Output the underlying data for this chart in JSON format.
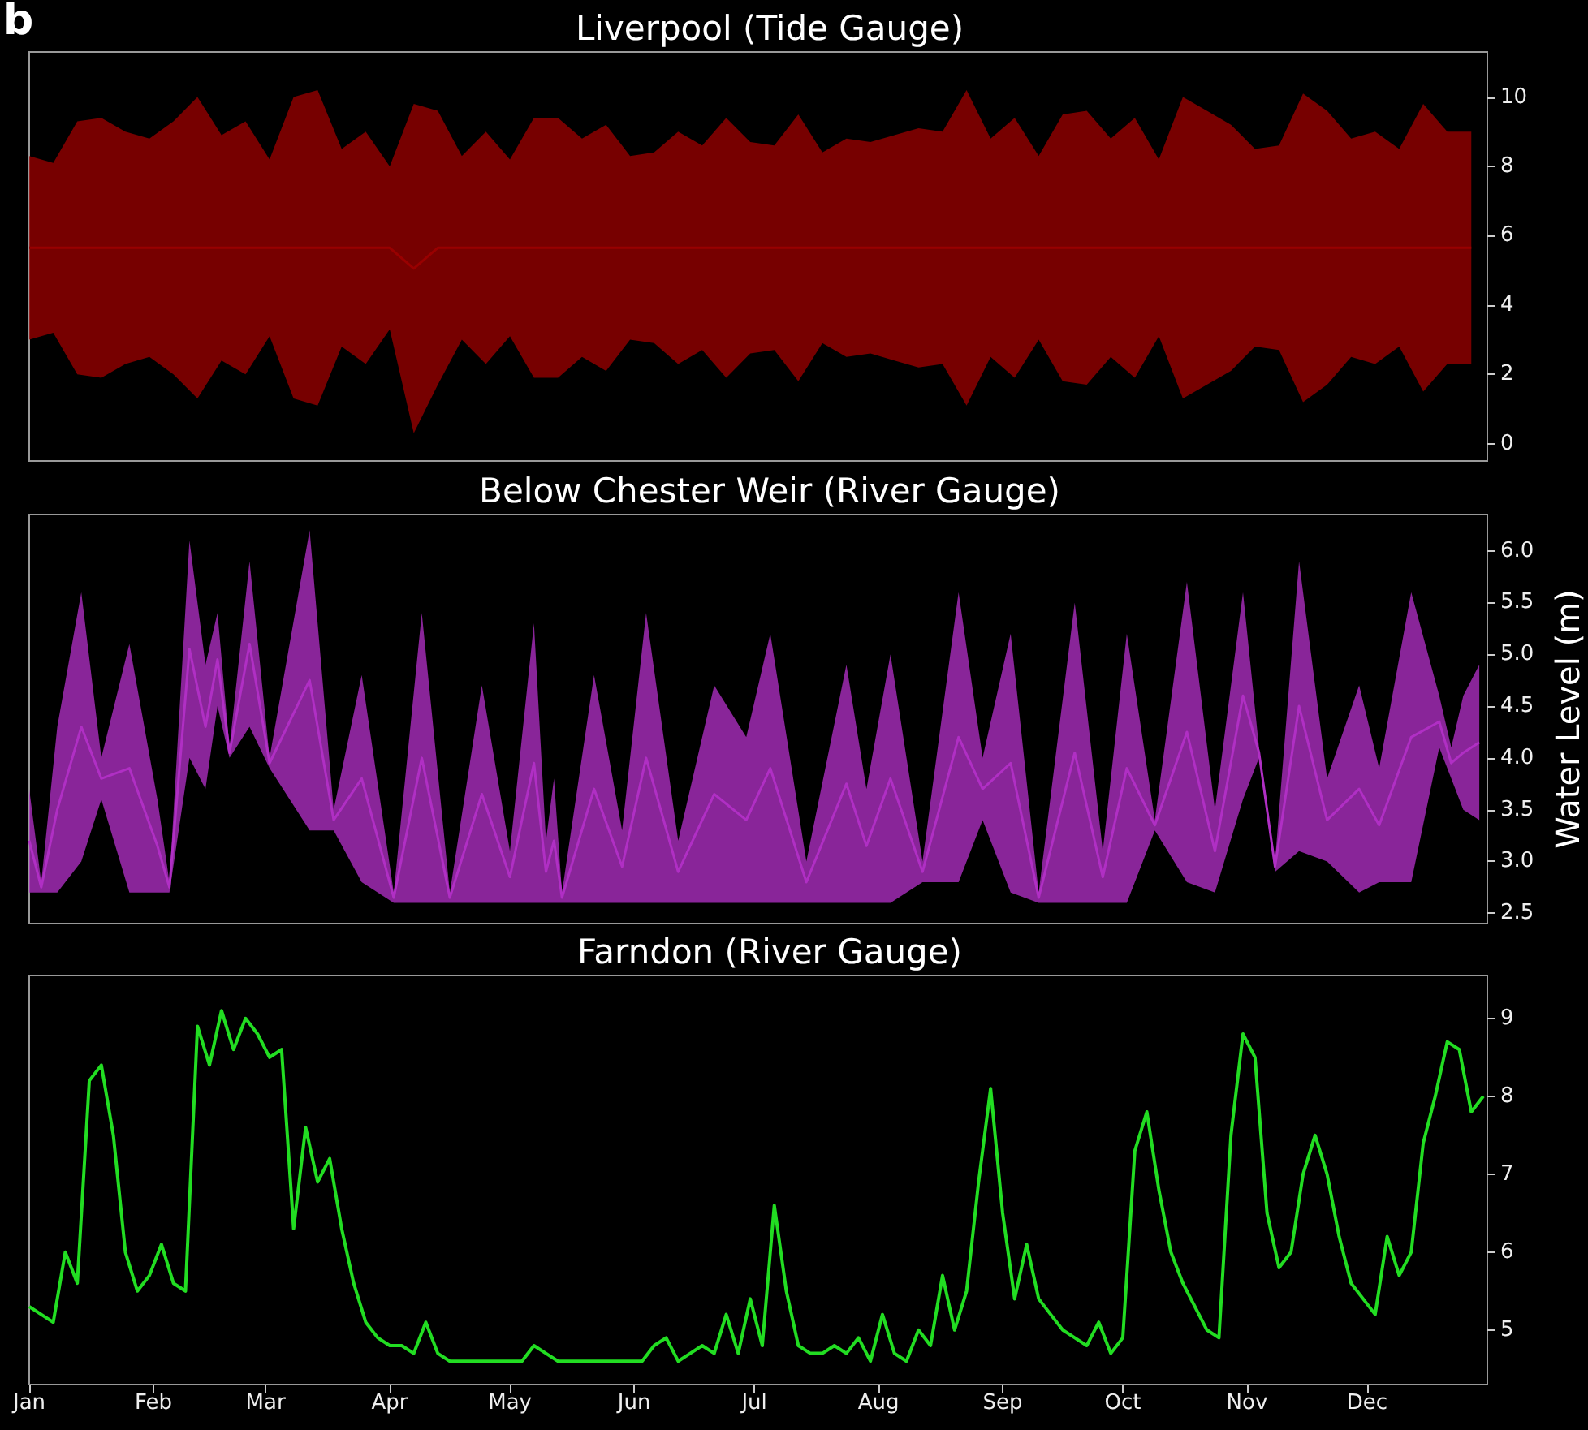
{
  "chart_data": [
    {
      "type": "line",
      "title": "Liverpool (Tide Gauge)",
      "annotations": [
        "b"
      ],
      "tick_labels": "y",
      "grid": false,
      "x": [
        "--01-01",
        "--01-07",
        "--01-13",
        "--01-19",
        "--01-25",
        "--01-31",
        "--02-06",
        "--02-12",
        "--02-18",
        "--02-24",
        "--03-02",
        "--03-08",
        "--03-14",
        "--03-20",
        "--03-26",
        "--04-01",
        "--04-07",
        "--04-13",
        "--04-19",
        "--04-25",
        "--05-01",
        "--05-07",
        "--05-13",
        "--05-19",
        "--05-25",
        "--05-31",
        "--06-06",
        "--06-12",
        "--06-18",
        "--06-24",
        "--06-30",
        "--07-06",
        "--07-12",
        "--07-18",
        "--07-24",
        "--07-30",
        "--08-05",
        "--08-11",
        "--08-17",
        "--08-23",
        "--08-29",
        "--09-04",
        "--09-10",
        "--09-16",
        "--09-22",
        "--09-28",
        "--10-04",
        "--10-10",
        "--10-16",
        "--10-22",
        "--10-28",
        "--11-03",
        "--11-09",
        "--11-15",
        "--11-21",
        "--11-27",
        "--12-03",
        "--12-09",
        "--12-15",
        "--12-21",
        "--12-27"
      ],
      "series": [
        {
          "color": "#990000",
          "values": [
            5.65,
            5.65,
            5.65,
            5.65,
            5.65,
            5.65,
            5.65,
            5.65,
            5.65,
            5.65,
            5.65,
            5.65,
            5.65,
            5.65,
            5.65,
            5.65,
            5.05,
            5.65,
            5.65,
            5.65,
            5.65,
            5.65,
            5.65,
            5.65,
            5.65,
            5.65,
            5.65,
            5.65,
            5.65,
            5.65,
            5.65,
            5.65,
            5.65,
            5.65,
            5.65,
            5.65,
            5.65,
            5.65,
            5.65,
            5.65,
            5.65,
            5.65,
            5.65,
            5.65,
            5.65,
            5.65,
            5.65,
            5.65,
            5.65,
            5.65,
            5.65,
            5.65,
            5.65,
            5.65,
            5.65,
            5.65,
            5.65,
            5.65,
            5.65,
            5.65,
            5.65
          ],
          "upper": [
            8.3,
            8.1,
            9.3,
            9.4,
            9.0,
            8.8,
            9.3,
            10.0,
            8.9,
            9.3,
            8.2,
            10.0,
            10.2,
            8.5,
            9.0,
            8.0,
            9.8,
            9.6,
            8.3,
            9.0,
            8.2,
            9.4,
            9.4,
            8.8,
            9.2,
            8.3,
            8.4,
            9.0,
            8.6,
            9.4,
            8.7,
            8.6,
            9.5,
            8.4,
            8.8,
            8.7,
            8.9,
            9.1,
            9.0,
            10.2,
            8.8,
            9.4,
            8.3,
            9.5,
            9.6,
            8.8,
            9.4,
            8.2,
            10.0,
            9.6,
            9.2,
            8.5,
            8.6,
            10.1,
            9.6,
            8.8,
            9.0,
            8.5,
            9.8,
            9.0,
            9.0
          ],
          "lower": [
            3.0,
            3.2,
            2.0,
            1.9,
            2.3,
            2.5,
            2.0,
            1.3,
            2.4,
            2.0,
            3.1,
            1.3,
            1.1,
            2.8,
            2.3,
            3.3,
            0.3,
            1.7,
            3.0,
            2.3,
            3.1,
            1.9,
            1.9,
            2.5,
            2.1,
            3.0,
            2.9,
            2.3,
            2.7,
            1.9,
            2.6,
            2.7,
            1.8,
            2.9,
            2.5,
            2.6,
            2.4,
            2.2,
            2.3,
            1.1,
            2.5,
            1.9,
            3.0,
            1.8,
            1.7,
            2.5,
            1.9,
            3.1,
            1.3,
            1.7,
            2.1,
            2.8,
            2.7,
            1.2,
            1.7,
            2.5,
            2.3,
            2.8,
            1.5,
            2.3,
            2.3
          ]
        }
      ],
      "xlim": [
        "--01-01",
        "--12-31"
      ],
      "ylim": [
        -0.5,
        11.3
      ],
      "yticks": [
        0,
        2,
        4,
        6,
        8,
        10
      ]
    },
    {
      "type": "line",
      "title": "Below Chester Weir (River Gauge)",
      "ylabel": "Water Level (m)",
      "tick_labels": "y",
      "grid": false,
      "x": [
        "--01-01",
        "--01-04",
        "--01-08",
        "--01-14",
        "--01-19",
        "--01-26",
        "--02-02",
        "--02-05",
        "--02-10",
        "--02-14",
        "--02-17",
        "--02-20",
        "--02-25",
        "--03-02",
        "--03-12",
        "--03-18",
        "--03-25",
        "--04-02",
        "--04-09",
        "--04-16",
        "--04-24",
        "--05-01",
        "--05-07",
        "--05-10",
        "--05-12",
        "--05-14",
        "--05-22",
        "--05-29",
        "--06-04",
        "--06-12",
        "--06-21",
        "--06-29",
        "--07-05",
        "--07-14",
        "--07-24",
        "--07-29",
        "--08-04",
        "--08-12",
        "--08-21",
        "--08-27",
        "--09-03",
        "--09-10",
        "--09-19",
        "--09-26",
        "--10-02",
        "--10-09",
        "--10-17",
        "--10-24",
        "--10-31",
        "--11-04",
        "--11-08",
        "--11-14",
        "--11-21",
        "--11-29",
        "--12-04",
        "--12-12",
        "--12-19",
        "--12-22",
        "--12-25",
        "--12-29"
      ],
      "series": [
        {
          "color": "#b02fc4",
          "values": [
            3.2,
            2.75,
            3.5,
            4.3,
            3.8,
            3.9,
            3.15,
            2.75,
            5.05,
            4.3,
            4.95,
            4.05,
            5.1,
            3.95,
            4.75,
            3.4,
            3.8,
            2.65,
            4.0,
            2.65,
            3.65,
            2.85,
            3.95,
            2.9,
            3.2,
            2.65,
            3.7,
            2.95,
            4.0,
            2.9,
            3.65,
            3.4,
            3.9,
            2.8,
            3.75,
            3.15,
            3.8,
            2.9,
            4.2,
            3.7,
            3.95,
            2.65,
            4.05,
            2.85,
            3.9,
            3.35,
            4.25,
            3.1,
            4.6,
            4.05,
            2.95,
            4.5,
            3.4,
            3.7,
            3.35,
            4.2,
            4.35,
            3.95,
            4.05,
            4.15
          ],
          "upper": [
            3.7,
            2.8,
            4.3,
            5.6,
            4.0,
            5.1,
            3.6,
            2.8,
            6.1,
            4.9,
            5.4,
            4.1,
            5.9,
            4.0,
            6.2,
            3.5,
            4.8,
            2.7,
            5.4,
            2.7,
            4.7,
            3.1,
            5.3,
            3.2,
            3.8,
            2.7,
            4.8,
            3.3,
            5.4,
            3.2,
            4.7,
            4.2,
            5.2,
            3.0,
            4.9,
            3.7,
            5.0,
            3.0,
            5.6,
            4.0,
            5.2,
            2.7,
            5.5,
            3.1,
            5.2,
            3.4,
            5.7,
            3.5,
            5.6,
            4.1,
            3.0,
            5.9,
            3.8,
            4.7,
            3.9,
            5.6,
            4.6,
            4.1,
            4.6,
            4.9
          ],
          "lower": [
            2.7,
            2.7,
            2.7,
            3.0,
            3.6,
            2.7,
            2.7,
            2.7,
            4.0,
            3.7,
            4.5,
            4.0,
            4.3,
            3.9,
            3.3,
            3.3,
            2.8,
            2.6,
            2.6,
            2.6,
            2.6,
            2.6,
            2.6,
            2.6,
            2.6,
            2.6,
            2.6,
            2.6,
            2.6,
            2.6,
            2.6,
            2.6,
            2.6,
            2.6,
            2.6,
            2.6,
            2.6,
            2.8,
            2.8,
            3.4,
            2.7,
            2.6,
            2.6,
            2.6,
            2.6,
            3.3,
            2.8,
            2.7,
            3.6,
            4.0,
            2.9,
            3.1,
            3.0,
            2.7,
            2.8,
            2.8,
            4.1,
            3.8,
            3.5,
            3.4
          ]
        }
      ],
      "xlim": [
        "--01-01",
        "--12-31"
      ],
      "ylim": [
        2.4,
        6.35
      ],
      "yticks": [
        2.5,
        {
          "value": 3,
          "label": "3.0"
        },
        3.5,
        {
          "value": 4,
          "label": "4.0"
        },
        4.5,
        {
          "value": 5,
          "label": "5.0"
        },
        5.5,
        {
          "value": 6,
          "label": "6.0"
        }
      ]
    },
    {
      "type": "line",
      "title": "Farndon (River Gauge)",
      "grid": false,
      "x": [
        "--01-01",
        "--01-04",
        "--01-07",
        "--01-10",
        "--01-13",
        "--01-16",
        "--01-19",
        "--01-22",
        "--01-25",
        "--01-28",
        "--01-31",
        "--02-03",
        "--02-06",
        "--02-09",
        "--02-12",
        "--02-15",
        "--02-18",
        "--02-21",
        "--02-24",
        "--02-27",
        "--03-02",
        "--03-05",
        "--03-08",
        "--03-11",
        "--03-14",
        "--03-17",
        "--03-20",
        "--03-23",
        "--03-26",
        "--03-29",
        "--04-01",
        "--04-04",
        "--04-07",
        "--04-10",
        "--04-13",
        "--04-16",
        "--04-19",
        "--04-22",
        "--04-25",
        "--04-28",
        "--05-01",
        "--05-04",
        "--05-07",
        "--05-10",
        "--05-13",
        "--05-16",
        "--05-19",
        "--05-22",
        "--05-25",
        "--05-28",
        "--05-31",
        "--06-03",
        "--06-06",
        "--06-09",
        "--06-12",
        "--06-15",
        "--06-18",
        "--06-21",
        "--06-24",
        "--06-27",
        "--06-30",
        "--07-03",
        "--07-06",
        "--07-09",
        "--07-12",
        "--07-15",
        "--07-18",
        "--07-21",
        "--07-24",
        "--07-27",
        "--07-30",
        "--08-02",
        "--08-05",
        "--08-08",
        "--08-11",
        "--08-14",
        "--08-17",
        "--08-20",
        "--08-23",
        "--08-26",
        "--08-29",
        "--09-01",
        "--09-04",
        "--09-07",
        "--09-10",
        "--09-13",
        "--09-16",
        "--09-19",
        "--09-22",
        "--09-25",
        "--09-28",
        "--10-01",
        "--10-04",
        "--10-07",
        "--10-10",
        "--10-13",
        "--10-16",
        "--10-19",
        "--10-22",
        "--10-25",
        "--10-28",
        "--10-31",
        "--11-03",
        "--11-06",
        "--11-09",
        "--11-12",
        "--11-15",
        "--11-18",
        "--11-21",
        "--11-24",
        "--11-27",
        "--11-30",
        "--12-03",
        "--12-06",
        "--12-09",
        "--12-12",
        "--12-15",
        "--12-18",
        "--12-21",
        "--12-24",
        "--12-27",
        "--12-30"
      ],
      "series": [
        {
          "color": "#22dd22",
          "values": [
            5.3,
            5.2,
            5.1,
            6.0,
            5.6,
            8.2,
            8.4,
            7.5,
            6.0,
            5.5,
            5.7,
            6.1,
            5.6,
            5.5,
            8.9,
            8.4,
            9.1,
            8.6,
            9.0,
            8.8,
            8.5,
            8.6,
            6.3,
            7.6,
            6.9,
            7.2,
            6.3,
            5.6,
            5.1,
            4.9,
            4.8,
            4.8,
            4.7,
            5.1,
            4.7,
            4.6,
            4.6,
            4.6,
            4.6,
            4.6,
            4.6,
            4.6,
            4.8,
            4.7,
            4.6,
            4.6,
            4.6,
            4.6,
            4.6,
            4.6,
            4.6,
            4.6,
            4.8,
            4.9,
            4.6,
            4.7,
            4.8,
            4.7,
            5.2,
            4.7,
            5.4,
            4.8,
            6.6,
            5.5,
            4.8,
            4.7,
            4.7,
            4.8,
            4.7,
            4.9,
            4.6,
            5.2,
            4.7,
            4.6,
            5.0,
            4.8,
            5.7,
            5.0,
            5.5,
            6.9,
            8.1,
            6.5,
            5.4,
            6.1,
            5.4,
            5.2,
            5.0,
            4.9,
            4.8,
            5.1,
            4.7,
            4.9,
            7.3,
            7.8,
            6.8,
            6.0,
            5.6,
            5.3,
            5.0,
            4.9,
            7.5,
            8.8,
            8.5,
            6.5,
            5.8,
            6.0,
            7.0,
            7.5,
            7.0,
            6.2,
            5.6,
            5.4,
            5.2,
            6.2,
            5.7,
            6.0,
            7.4,
            8.0,
            8.7,
            8.6,
            7.8,
            8.0
          ]
        }
      ],
      "xlim": [
        "--01-01",
        "--12-31"
      ],
      "xticks": [
        {
          "value": "--01-01",
          "label": "Jan"
        },
        {
          "value": "--02-01",
          "label": "Feb"
        },
        {
          "value": "--03-01",
          "label": "Mar"
        },
        {
          "value": "--04-01",
          "label": "Apr"
        },
        {
          "value": "--05-01",
          "label": "May"
        },
        {
          "value": "--06-01",
          "label": "Jun"
        },
        {
          "value": "--07-01",
          "label": "Jul"
        },
        {
          "value": "--08-01",
          "label": "Aug"
        },
        {
          "value": "--09-01",
          "label": "Sep"
        },
        {
          "value": "--10-01",
          "label": "Oct"
        },
        {
          "value": "--11-01",
          "label": "Nov"
        },
        {
          "value": "--12-01",
          "label": "Dec"
        }
      ],
      "ylim": [
        4.3,
        9.55
      ],
      "yticks": [
        5,
        6,
        7,
        8,
        9
      ]
    }
  ]
}
